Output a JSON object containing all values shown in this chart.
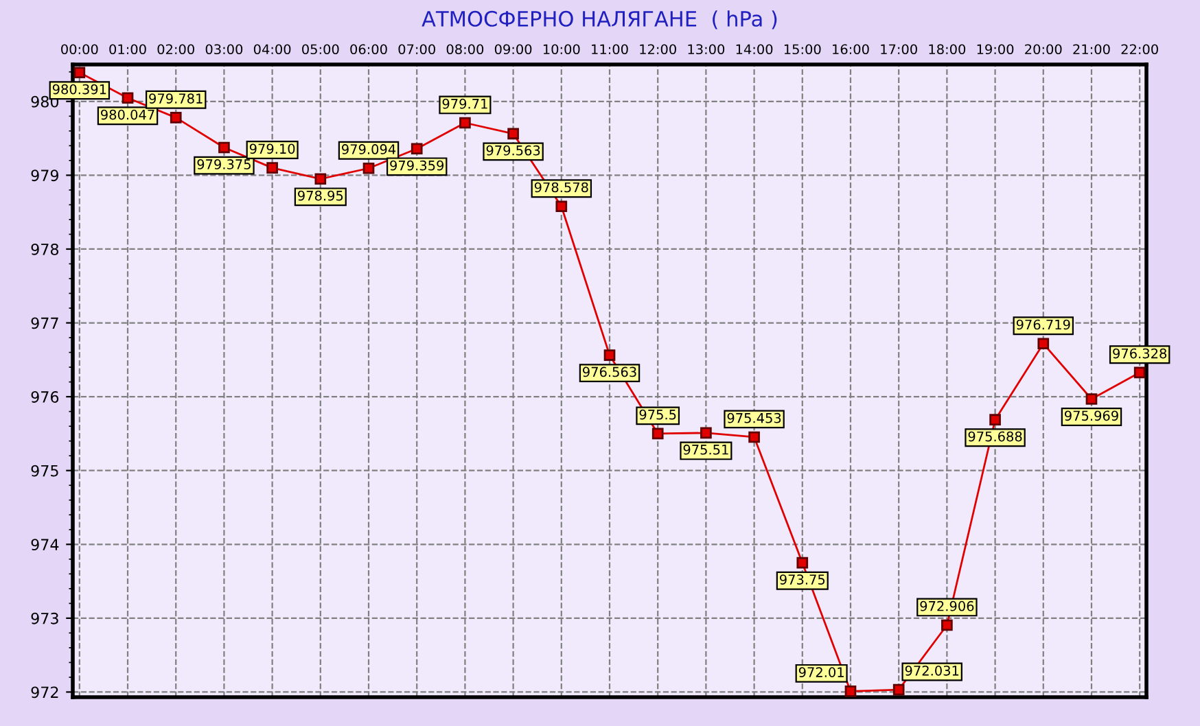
{
  "chart_data": {
    "type": "line",
    "title": "АТМОСФЕРНО НАЛЯГАНЕ  ( hPa )",
    "categories": [
      "00:00",
      "01:00",
      "02:00",
      "03:00",
      "04:00",
      "05:00",
      "06:00",
      "07:00",
      "08:00",
      "09:00",
      "10:00",
      "11:00",
      "12:00",
      "13:00",
      "14:00",
      "15:00",
      "16:00",
      "17:00",
      "18:00",
      "19:00",
      "20:00",
      "21:00",
      "22:00"
    ],
    "series": [
      {
        "color": "#e00000",
        "values": [
          980.391,
          980.047,
          979.781,
          979.375,
          979.1,
          978.95,
          979.094,
          979.359,
          979.71,
          979.563,
          978.578,
          976.563,
          975.5,
          975.51,
          975.453,
          973.75,
          972.01,
          972.031,
          972.906,
          975.688,
          976.719,
          975.969,
          976.328
        ],
        "value_labels": [
          "980.391",
          "980.047",
          "979.781",
          "979.375",
          "979.10",
          "978.95",
          "979.094",
          "979.359",
          "979.71",
          "979.563",
          "978.578",
          "976.563",
          "975.5",
          "975.51",
          "975.453",
          "973.75",
          "972.01",
          "972.031",
          "972.906",
          "975.688",
          "976.719",
          "975.969",
          "976.328"
        ]
      }
    ],
    "ylim": [
      971.93,
      980.5
    ],
    "yticks": [
      972,
      973,
      974,
      975,
      976,
      977,
      978,
      979,
      980
    ],
    "grid": true,
    "marker": "square",
    "line_style": "solid"
  }
}
